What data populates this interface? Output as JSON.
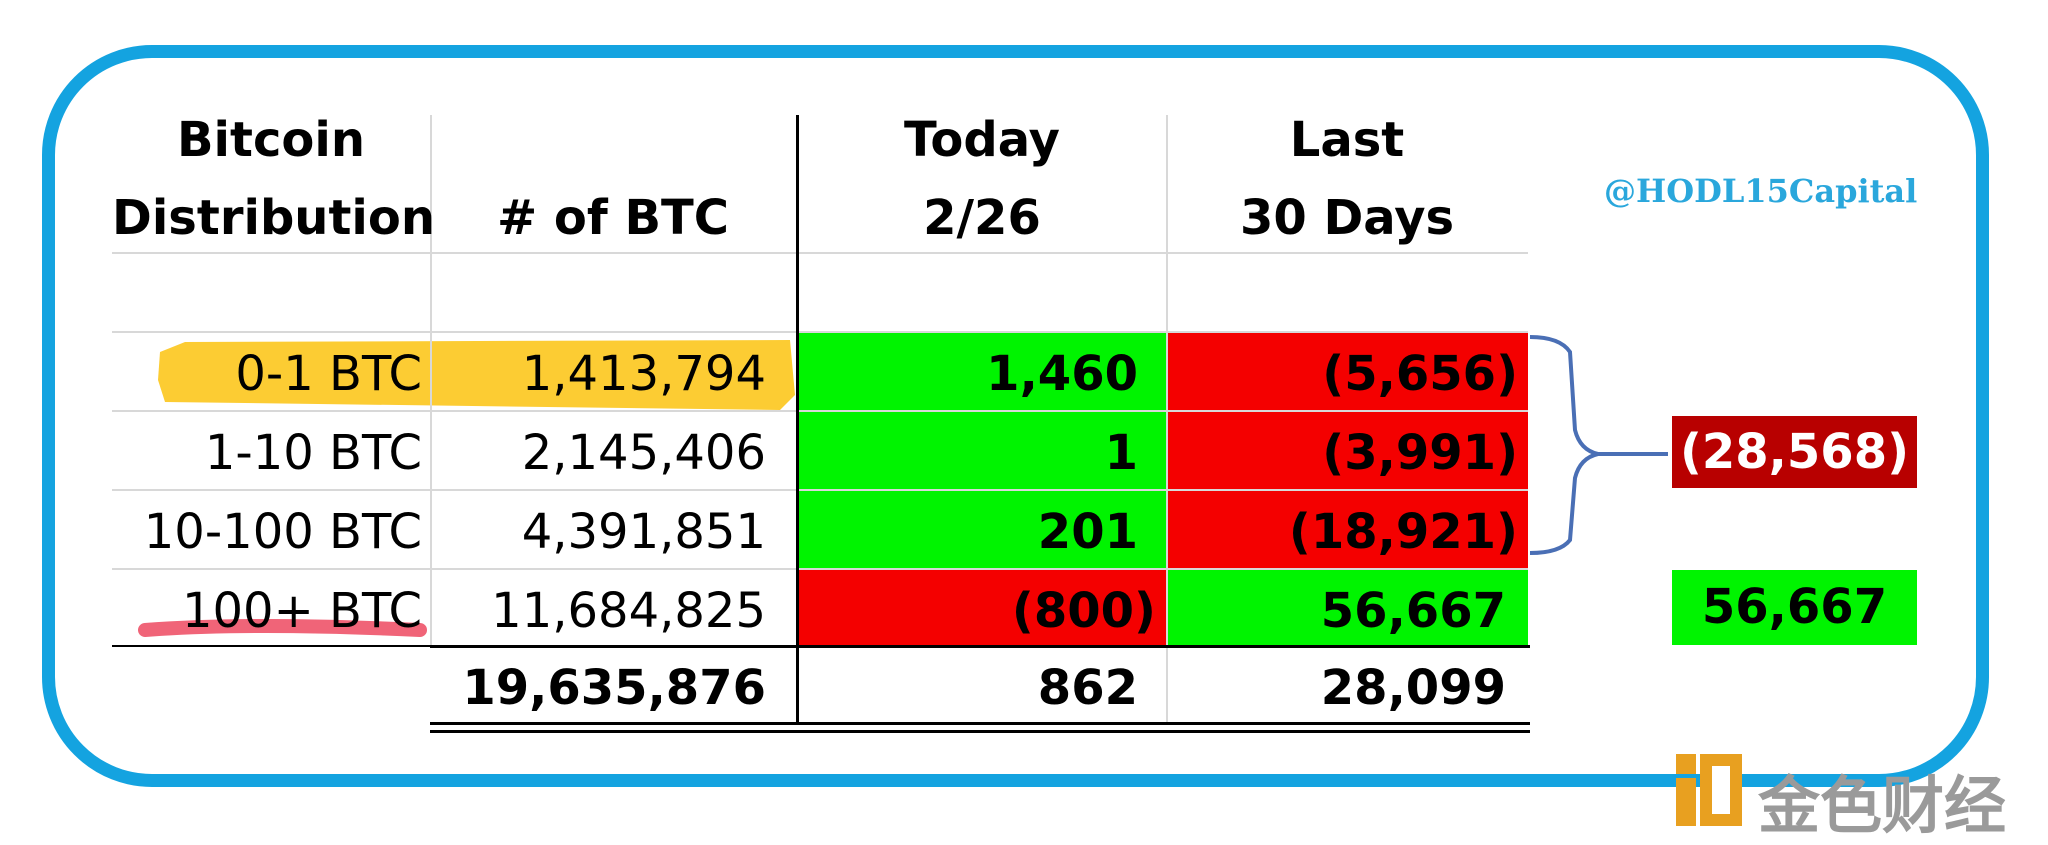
{
  "chart_data": {
    "type": "table",
    "columns": [
      "Bitcoin Distribution",
      "# of BTC",
      "Today 2/26",
      "Last 30 Days"
    ],
    "header": {
      "col1_line1": "Bitcoin",
      "col1_line2": "Distribution",
      "col2": "# of BTC",
      "col3_line1": "Today",
      "col3_line2": "2/26",
      "col4_line1": "Last",
      "col4_line2": "30 Days"
    },
    "rows": [
      {
        "label": "0-1 BTC",
        "btc": "1,413,794",
        "today": "1,460",
        "last30": "(5,656)"
      },
      {
        "label": "1-10 BTC",
        "btc": "2,145,406",
        "today": "1",
        "last30": "(3,991)"
      },
      {
        "label": "10-100 BTC",
        "btc": "4,391,851",
        "today": "201",
        "last30": "(18,921)"
      },
      {
        "label": "100+ BTC",
        "btc": "11,684,825",
        "today": "(800)",
        "last30": "56,667"
      }
    ],
    "totals": {
      "btc": "19,635,876",
      "today": "862",
      "last30": "28,099"
    },
    "side_values": {
      "group_small": "(28,568)",
      "group_large": "56,667"
    },
    "colors": {
      "positive": "#00f400",
      "negative": "#f40000",
      "dark_negative": "#b80000",
      "frame": "#14a3e0",
      "highlight_yellow": "#fcc928",
      "underline_red": "#f06478"
    }
  },
  "watermark": "@HODL15Capital",
  "logo_text": "金色财经"
}
